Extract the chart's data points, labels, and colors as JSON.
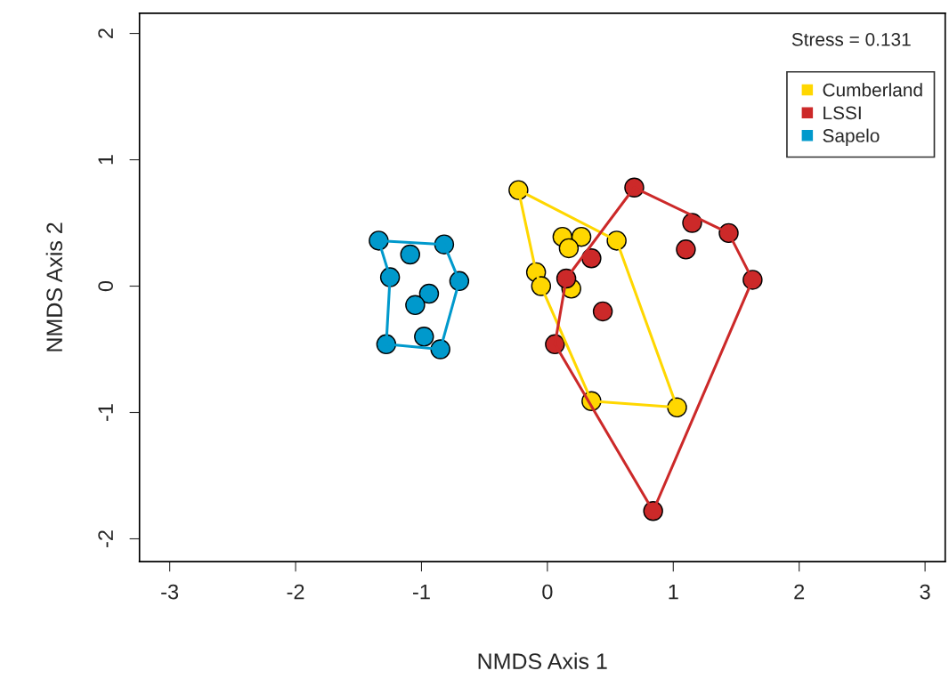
{
  "chart_data": {
    "type": "scatter",
    "xlabel": "NMDS Axis 1",
    "ylabel": "NMDS Axis 2",
    "xlim": [
      -3.24,
      3.16
    ],
    "ylim": [
      -2.18,
      2.16
    ],
    "xticks": [
      -3,
      -2,
      -1,
      0,
      1,
      2,
      3
    ],
    "yticks": [
      -2,
      -1,
      0,
      1,
      2
    ],
    "grid": false,
    "legend": "top right",
    "annotations": [
      "Stress = 0.131"
    ],
    "series": [
      {
        "type": "line",
        "color": "#ffd700",
        "x": [
          -0.23,
          0.55,
          1.03
        ],
        "values": [
          0.76,
          0.36,
          -0.96
        ]
      },
      {
        "type": "line",
        "color": "#ffd700",
        "x": [
          -0.09,
          -0.05,
          0.35,
          1.03
        ],
        "values": [
          0.11,
          0.0,
          -0.91,
          -0.96
        ]
      },
      {
        "type": "line",
        "color": "#ffd700",
        "x": [
          -0.23,
          -0.09
        ],
        "values": [
          0.76,
          0.11
        ]
      },
      {
        "type": "line",
        "color": "#cc2929",
        "x": [
          0.69,
          1.44,
          1.63
        ],
        "values": [
          0.78,
          0.42,
          0.05
        ]
      },
      {
        "type": "line",
        "color": "#cc2929",
        "x": [
          0.06,
          0.84,
          1.63
        ],
        "values": [
          -0.46,
          -1.78,
          0.05
        ]
      },
      {
        "type": "line",
        "color": "#cc2929",
        "x": [
          0.06,
          0.15,
          0.69
        ],
        "values": [
          -0.46,
          0.06,
          0.78
        ]
      },
      {
        "type": "line",
        "color": "#0099cc",
        "x": [
          -1.34,
          -0.82,
          -0.7
        ],
        "values": [
          0.36,
          0.33,
          0.04
        ]
      },
      {
        "type": "line",
        "color": "#0099cc",
        "x": [
          -1.28,
          -0.85,
          -0.7
        ],
        "values": [
          -0.46,
          -0.5,
          0.04
        ]
      },
      {
        "type": "line",
        "color": "#0099cc",
        "x": [
          -1.28,
          -1.25
        ],
        "values": [
          -0.46,
          0.07
        ]
      },
      {
        "type": "line",
        "color": "#0099cc",
        "x": [
          -1.34,
          -1.25
        ],
        "values": [
          0.36,
          0.07
        ]
      },
      {
        "name": "Cumberland",
        "color": "#ffd700",
        "marker": "circle",
        "x": [
          -0.23,
          0.12,
          0.27,
          0.17,
          0.55,
          -0.09,
          -0.05,
          0.19,
          0.35,
          1.03
        ],
        "values": [
          0.76,
          0.39,
          0.39,
          0.3,
          0.36,
          0.11,
          0.0,
          -0.02,
          -0.91,
          -0.96
        ]
      },
      {
        "name": "LSSI",
        "color": "#cc2929",
        "marker": "circle",
        "x": [
          0.69,
          1.15,
          1.44,
          1.1,
          0.35,
          0.15,
          1.63,
          0.44,
          0.06,
          0.84
        ],
        "values": [
          0.78,
          0.5,
          0.42,
          0.29,
          0.22,
          0.06,
          0.05,
          -0.2,
          -0.46,
          -1.78
        ]
      },
      {
        "name": "Sapelo",
        "color": "#0099cc",
        "marker": "circle",
        "x": [
          -1.34,
          -0.82,
          -1.09,
          -1.25,
          -0.7,
          -0.94,
          -1.05,
          -0.98,
          -1.28,
          -0.85
        ],
        "values": [
          0.36,
          0.33,
          0.25,
          0.07,
          0.04,
          -0.06,
          -0.15,
          -0.4,
          -0.46,
          -0.5
        ]
      }
    ]
  }
}
